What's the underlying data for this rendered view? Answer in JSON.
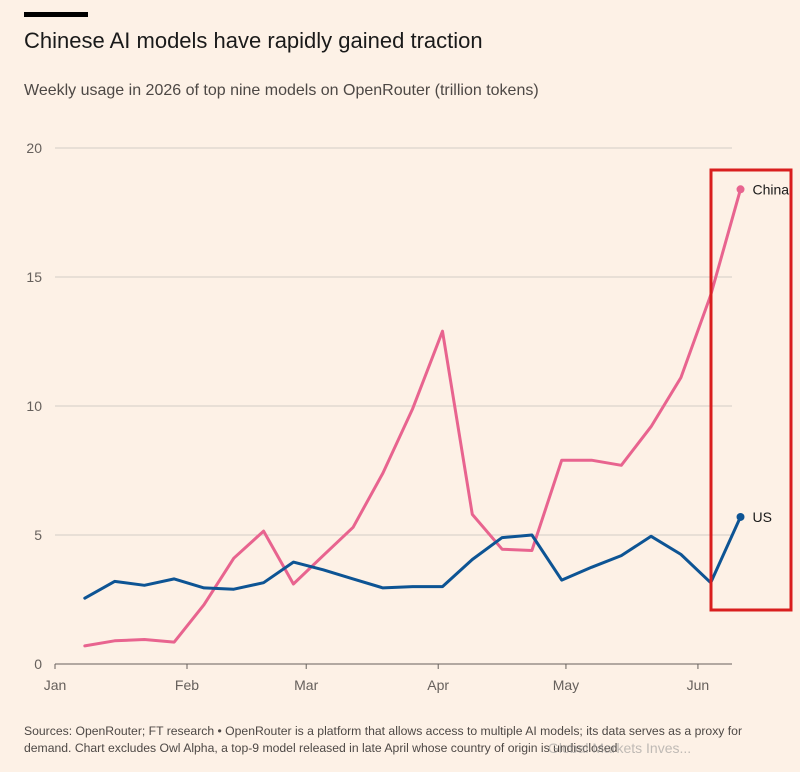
{
  "title": "Chinese AI models have rapidly gained traction",
  "subtitle": "Weekly usage in 2026 of top nine models on OpenRouter (trillion tokens)",
  "footer": "Sources: OpenRouter; FT research • OpenRouter is a platform that allows access to multiple AI models; its data serves as a proxy for demand. Chart excludes Owl Alpha, a top-9 model released in late April whose country of origin is undisclosed",
  "watermark": "Global Markets Inves...",
  "colors": {
    "China": "#e8648f",
    "US": "#0d5494",
    "highlight_box": "#d91e1e",
    "grid": "#d3cdc6",
    "background": "#fdf1e6"
  },
  "chart_data": {
    "type": "line",
    "title": "Chinese AI models have rapidly gained traction",
    "subtitle": "Weekly usage in 2026 of top nine models on OpenRouter (trillion tokens)",
    "x_tick_labels": [
      "Jan",
      "Feb",
      "Mar",
      "Apr",
      "May",
      "Jun"
    ],
    "x_tick_dates": [
      "2026-01-01",
      "2026-02-01",
      "2026-03-01",
      "2026-04-01",
      "2026-05-01",
      "2026-06-01"
    ],
    "y_ticks": [
      0,
      5,
      10,
      15,
      20
    ],
    "ylim": [
      0,
      20
    ],
    "xlim": [
      "2026-01-01",
      "2026-06-09"
    ],
    "grid": "horizontal",
    "legend": "direct labels at line ends",
    "x": [
      "2026-01-08",
      "2026-01-15",
      "2026-01-22",
      "2026-01-29",
      "2026-02-05",
      "2026-02-12",
      "2026-02-19",
      "2026-02-26",
      "2026-03-05",
      "2026-03-12",
      "2026-03-19",
      "2026-03-26",
      "2026-04-02",
      "2026-04-09",
      "2026-04-16",
      "2026-04-23",
      "2026-04-30",
      "2026-05-07",
      "2026-05-14",
      "2026-05-21",
      "2026-05-28",
      "2026-06-04",
      "2026-06-11"
    ],
    "series": [
      {
        "name": "China",
        "values": [
          0.7,
          0.9,
          0.95,
          0.85,
          2.3,
          4.1,
          5.15,
          3.1,
          4.2,
          5.3,
          7.4,
          9.9,
          12.9,
          5.8,
          4.45,
          4.4,
          7.9,
          7.9,
          7.7,
          9.2,
          11.1,
          14.3,
          18.4
        ]
      },
      {
        "name": "US",
        "values": [
          2.55,
          3.2,
          3.05,
          3.3,
          2.95,
          2.9,
          3.15,
          3.95,
          3.65,
          3.3,
          2.95,
          3.0,
          3.0,
          4.05,
          4.9,
          5.0,
          3.25,
          3.75,
          4.2,
          4.95,
          4.25,
          3.15,
          5.7
        ]
      }
    ],
    "annotations": [
      "Red box highlights the latest week"
    ]
  }
}
